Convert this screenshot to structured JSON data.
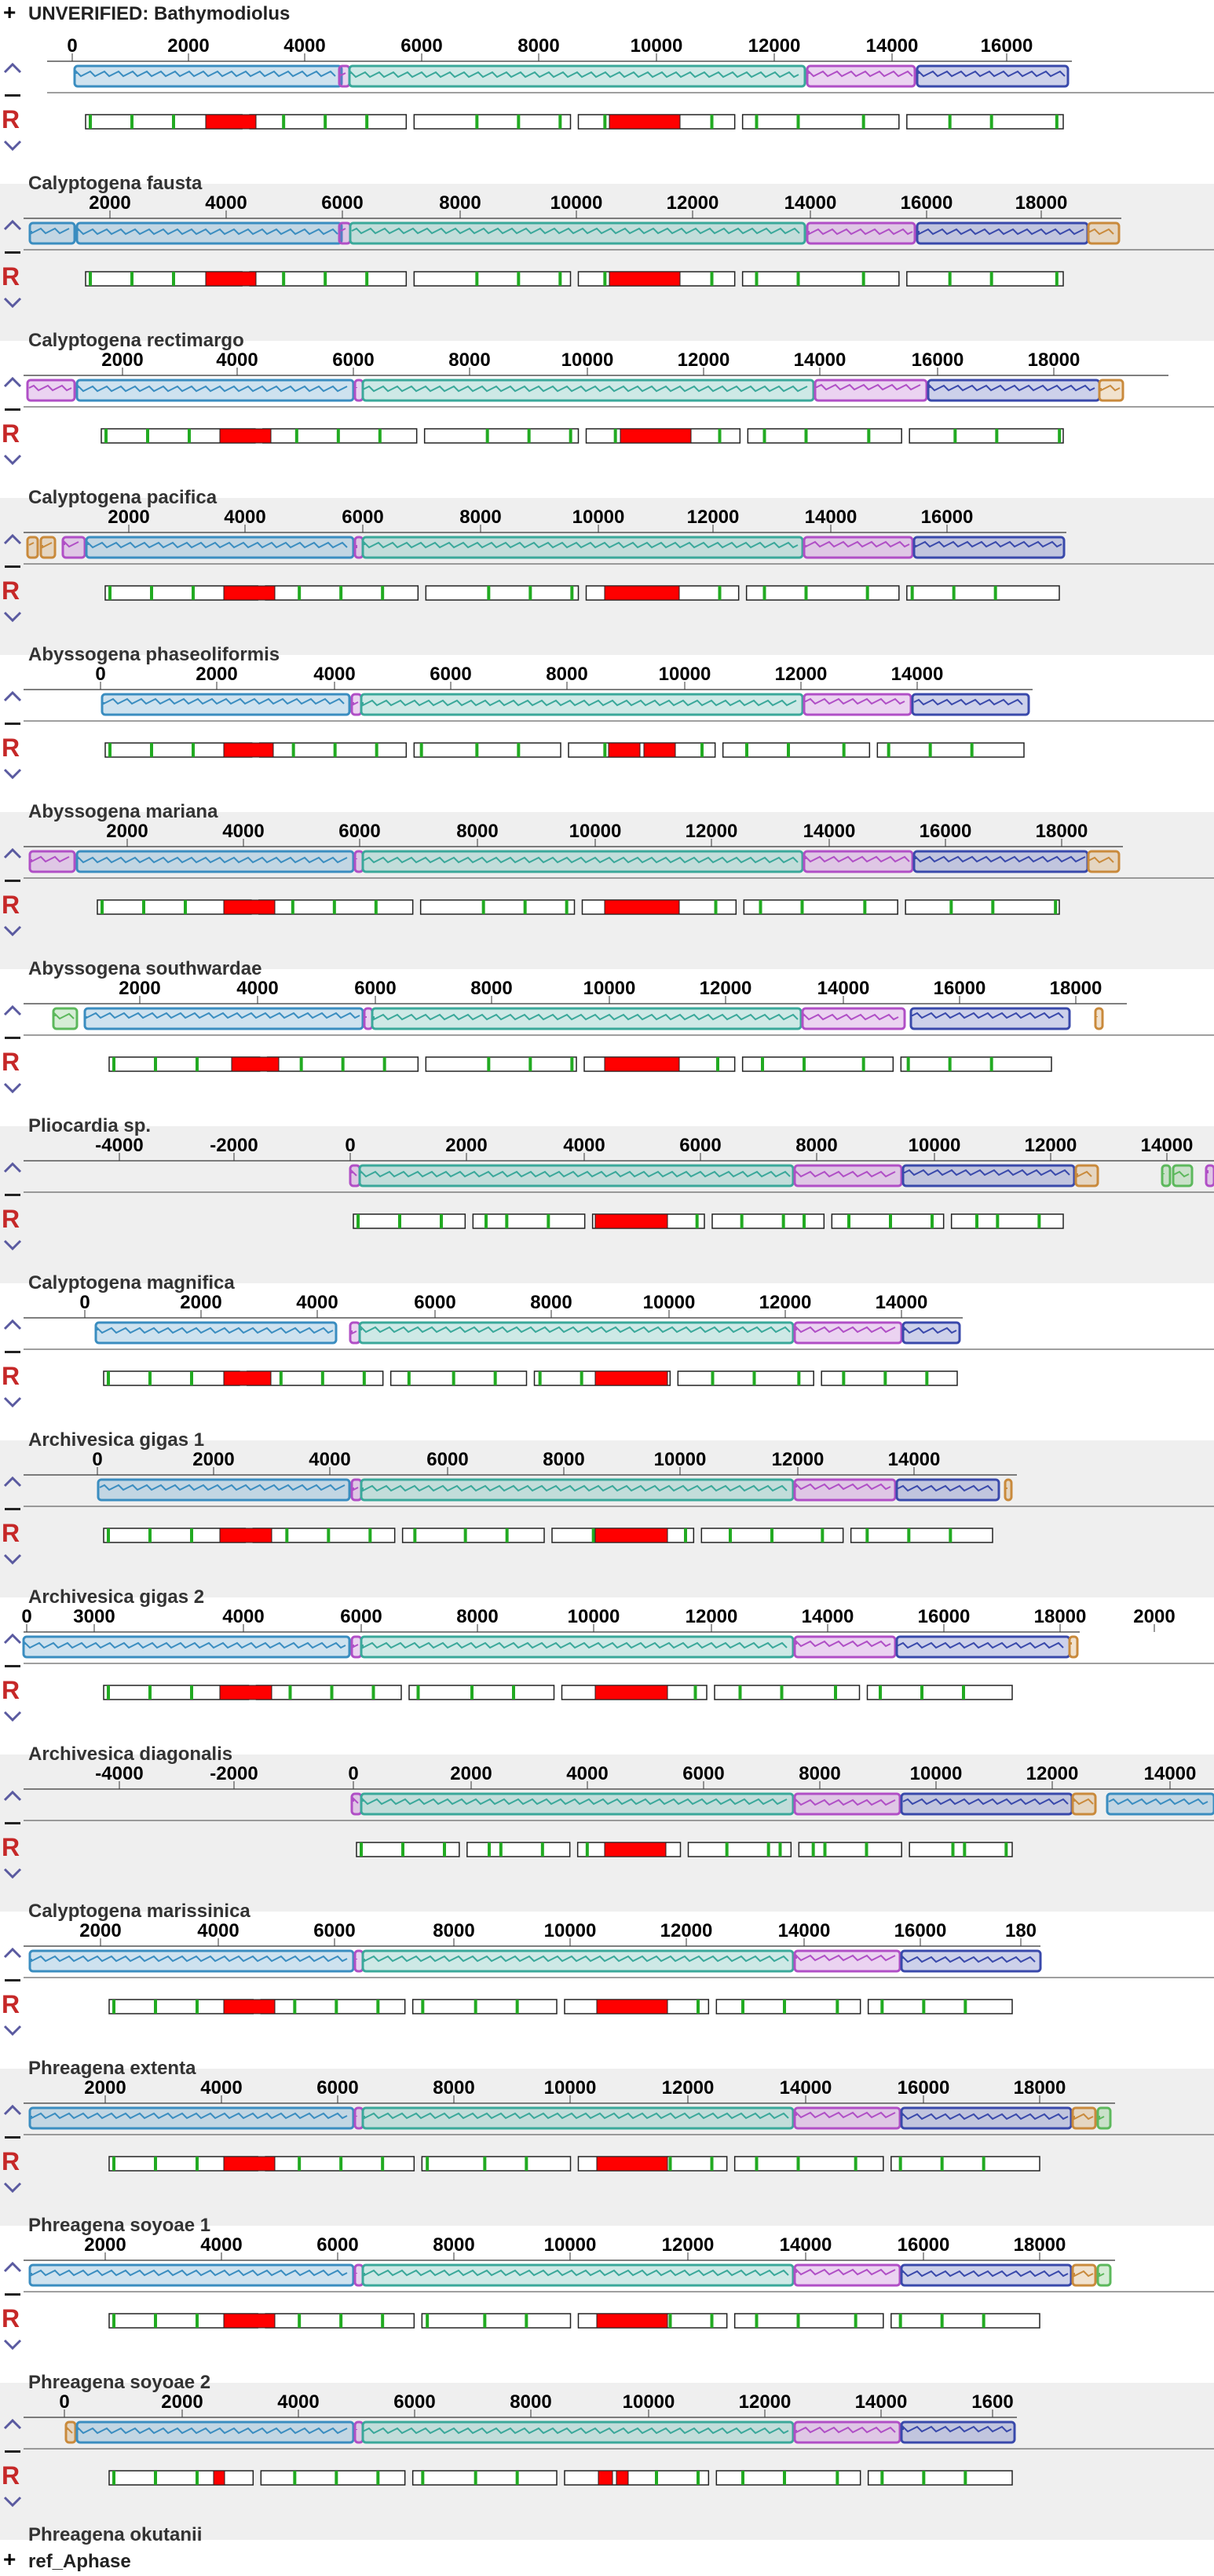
{
  "header": {
    "expand_icon": "plus-icon",
    "title": "UNVERIFIED: Bathymodiolus"
  },
  "footer": {
    "expand_icon": "plus-icon",
    "title": "ref_Aphase"
  },
  "controls": {
    "up": "chevron-up-icon",
    "minus": "minus-icon",
    "reset": "R",
    "down": "chevron-down-icon"
  },
  "colors": {
    "block_blue": "#3a8dc0",
    "block_teal": "#3aa89a",
    "block_magenta": "#b04fc6",
    "block_navy": "#3949ab",
    "block_orange": "#c98a3c",
    "block_green": "#5cb85c",
    "feature_red": "#ff0000",
    "feature_green": "#22aa22",
    "panel_shade": "#efefef"
  },
  "panels": [
    {
      "label": "",
      "ticks": [
        "0",
        "2000",
        "4000",
        "6000",
        "8000",
        "10000",
        "12000",
        "14000",
        "16000"
      ]
    },
    {
      "label": "Calyptogena fausta",
      "ticks": [
        "2000",
        "4000",
        "6000",
        "8000",
        "10000",
        "12000",
        "14000",
        "16000",
        "18000"
      ]
    },
    {
      "label": "Calyptogena rectimargo",
      "ticks": [
        "2000",
        "4000",
        "6000",
        "8000",
        "10000",
        "12000",
        "14000",
        "16000",
        "18000"
      ]
    },
    {
      "label": "Calyptogena pacifica",
      "ticks": [
        "2000",
        "4000",
        "6000",
        "8000",
        "10000",
        "12000",
        "14000",
        "16000"
      ]
    },
    {
      "label": "Abyssogena phaseoliformis",
      "ticks": [
        "0",
        "2000",
        "4000",
        "6000",
        "8000",
        "10000",
        "12000",
        "14000"
      ]
    },
    {
      "label": "Abyssogena mariana",
      "ticks": [
        "2000",
        "4000",
        "6000",
        "8000",
        "10000",
        "12000",
        "14000",
        "16000",
        "18000"
      ]
    },
    {
      "label": "Abyssogena southwardae",
      "ticks": [
        "2000",
        "4000",
        "6000",
        "8000",
        "10000",
        "12000",
        "14000",
        "16000",
        "18000"
      ]
    },
    {
      "label": "Pliocardia sp.",
      "ticks": [
        "-4000",
        "-2000",
        "0",
        "2000",
        "4000",
        "6000",
        "8000",
        "10000",
        "12000",
        "14000"
      ]
    },
    {
      "label": "Calyptogena magnifica",
      "ticks": [
        "0",
        "2000",
        "4000",
        "6000",
        "8000",
        "10000",
        "12000",
        "14000"
      ]
    },
    {
      "label": "Archivesica gigas 1",
      "ticks": [
        "0",
        "2000",
        "4000",
        "6000",
        "8000",
        "10000",
        "12000",
        "14000"
      ]
    },
    {
      "label": "Archivesica gigas 2",
      "ticks": [
        "0",
        "3000",
        "4000",
        "6000",
        "8000",
        "10000",
        "12000",
        "14000",
        "16000",
        "18000",
        "2000"
      ]
    },
    {
      "label": "Archivesica diagonalis",
      "ticks": [
        "-4000",
        "-2000",
        "0",
        "2000",
        "4000",
        "6000",
        "8000",
        "10000",
        "12000",
        "14000"
      ]
    },
    {
      "label": "Calyptogena marissinica",
      "ticks": [
        "2000",
        "4000",
        "6000",
        "8000",
        "10000",
        "12000",
        "14000",
        "16000",
        "180"
      ]
    },
    {
      "label": "Phreagena extenta",
      "ticks": [
        "2000",
        "4000",
        "6000",
        "8000",
        "10000",
        "12000",
        "14000",
        "16000",
        "18000"
      ]
    },
    {
      "label": "Phreagena soyoae 1",
      "ticks": [
        "2000",
        "4000",
        "6000",
        "8000",
        "10000",
        "12000",
        "14000",
        "16000",
        "18000"
      ]
    },
    {
      "label": "Phreagena soyoae 2",
      "ticks": [
        "0",
        "2000",
        "4000",
        "6000",
        "8000",
        "10000",
        "12000",
        "14000",
        "1600"
      ]
    },
    {
      "label": "Phreagena okutanii",
      "ticks": []
    }
  ]
}
